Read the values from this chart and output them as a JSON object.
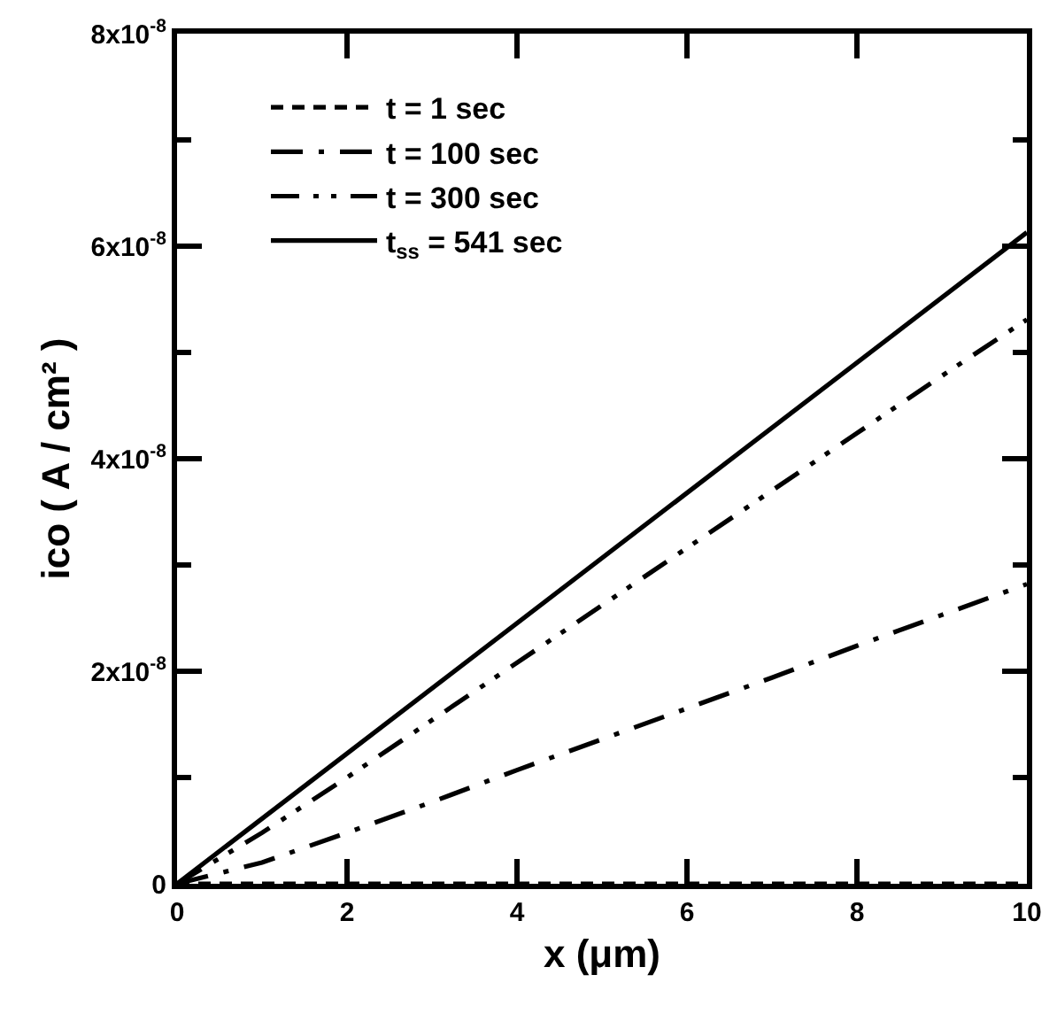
{
  "chart_data": {
    "type": "line",
    "xlabel": "x (μm)",
    "ylabel": "ico ( A / cm² )",
    "x": [
      0,
      1,
      2,
      3,
      4,
      5,
      6,
      7,
      8,
      9,
      10
    ],
    "series": [
      {
        "name": "t = 1 sec",
        "color": "#000000",
        "line_style": "dashed",
        "values": [
          0,
          0,
          0,
          0,
          0,
          0,
          0,
          0,
          0,
          0,
          0
        ]
      },
      {
        "name": "t = 100 sec",
        "color": "#000000",
        "line_style": "dashdot",
        "values": [
          0,
          2e-09,
          4.8e-09,
          7.7e-09,
          1.07e-08,
          1.36e-08,
          1.65e-08,
          1.94e-08,
          2.24e-08,
          2.53e-08,
          2.82e-08
        ]
      },
      {
        "name": "t = 300 sec",
        "color": "#000000",
        "line_style": "dashdotdot",
        "values": [
          0,
          4.8e-09,
          1e-08,
          1.54e-08,
          2.08e-08,
          2.62e-08,
          3.16e-08,
          3.7e-08,
          4.24e-08,
          4.78e-08,
          5.31e-08
        ]
      },
      {
        "name": "t$_{ss}$ = 541 sec",
        "color": "#000000",
        "line_style": "solid",
        "x": [
          0,
          10
        ],
        "values": [
          0,
          6.13e-08
        ]
      }
    ],
    "xlim": [
      0,
      10
    ],
    "xticks": [
      0,
      2,
      4,
      6,
      8,
      10
    ],
    "ylim": [
      0,
      8e-08
    ],
    "yticks": [
      {
        "value": 0,
        "label": "0"
      },
      {
        "value": 1e-08,
        "label": null
      },
      {
        "value": 2e-08,
        "label": "2x10$^{-8}$"
      },
      {
        "value": 3e-08,
        "label": null
      },
      {
        "value": 4e-08,
        "label": "4x10$^{-8}$"
      },
      {
        "value": 5e-08,
        "label": null
      },
      {
        "value": 6e-08,
        "label": "6x10$^{-8}$"
      },
      {
        "value": 7e-08,
        "label": null
      },
      {
        "value": 8e-08,
        "label": "8x10$^{-8}$"
      }
    ],
    "grid": false,
    "legend": "top left"
  }
}
